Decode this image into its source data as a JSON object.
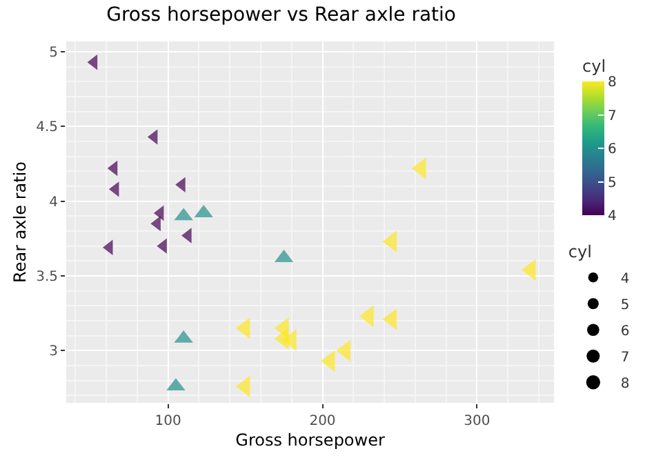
{
  "chart_data": {
    "type": "scatter",
    "title": "Gross horsepower vs Rear axle ratio",
    "xlabel": "Gross horsepower",
    "ylabel": "Rear axle ratio",
    "xlim": [
      34,
      350
    ],
    "xticks": [
      100,
      200,
      300
    ],
    "ylim": [
      2.65,
      5.07
    ],
    "yticks": [
      3,
      3.5,
      4,
      4.5,
      5
    ],
    "grid": true,
    "clabel": "cyl",
    "clim": [
      4,
      8
    ],
    "cticks": [
      4,
      5,
      6,
      7,
      8
    ],
    "legend_title": "cyl",
    "size_legend": [
      4,
      5,
      6,
      7,
      8
    ],
    "series": [
      {
        "marker": "triangle-left",
        "x": [
          93,
          62,
          95,
          52,
          65,
          97,
          66,
          91,
          113,
          109
        ],
        "values": [
          3.85,
          3.69,
          3.92,
          4.93,
          4.22,
          3.7,
          4.08,
          4.43,
          3.77,
          4.11
        ],
        "cvalues": [
          4,
          4,
          4,
          4,
          4,
          4,
          4,
          4,
          4,
          4
        ],
        "sizes": [
          4,
          4,
          4,
          4,
          4,
          4,
          4,
          4,
          4,
          4
        ]
      },
      {
        "marker": "triangle",
        "x": [
          110,
          110,
          105,
          123,
          175
        ],
        "values": [
          3.9,
          3.08,
          2.76,
          3.92,
          3.62
        ],
        "cvalues": [
          6,
          6,
          6,
          6,
          6
        ],
        "sizes": [
          6,
          6,
          6,
          6,
          6
        ]
      },
      {
        "marker": "triangle-left",
        "x": [
          175,
          245,
          180,
          205,
          215,
          230,
          150,
          150,
          245,
          175,
          264,
          335
        ],
        "values": [
          3.15,
          3.21,
          3.07,
          2.93,
          3.0,
          3.23,
          2.76,
          3.15,
          3.73,
          3.08,
          4.22,
          3.54
        ],
        "cvalues": [
          8,
          8,
          8,
          8,
          8,
          8,
          8,
          8,
          8,
          8,
          8,
          8
        ],
        "sizes": [
          8,
          8,
          8,
          8,
          8,
          8,
          8,
          8,
          8,
          8,
          8,
          8
        ]
      }
    ]
  }
}
